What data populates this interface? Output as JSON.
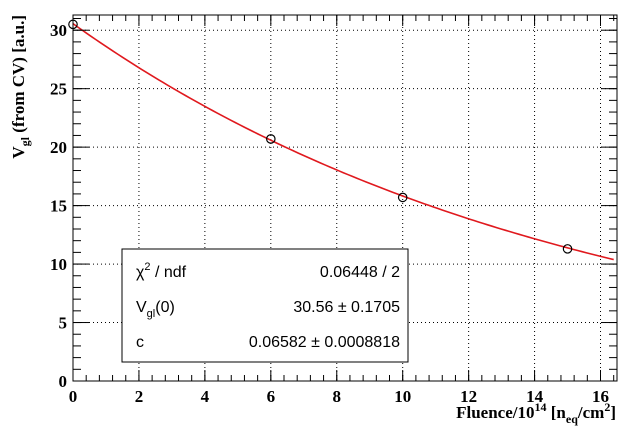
{
  "chart_data": {
    "type": "scatter",
    "xlabel": {
      "main": "Fluence/10",
      "exp": "14",
      "open": " [n",
      "sub": "eq",
      "unit": "/cm",
      "unit_exp": "2",
      "close": "]"
    },
    "ylabel": {
      "main": "V",
      "sub": "gl",
      "rest": " (from CV) [a.u.]"
    },
    "xlim": [
      0,
      16.5
    ],
    "ylim": [
      0,
      31.3
    ],
    "xticks": [
      0,
      2,
      4,
      6,
      8,
      10,
      12,
      14,
      16
    ],
    "yticks": [
      0,
      5,
      10,
      15,
      20,
      25,
      30
    ],
    "grid": true,
    "series": [
      {
        "kind": "points",
        "marker": "open-circle",
        "color": "#000000",
        "points": [
          {
            "x": 0,
            "y": 30.5
          },
          {
            "x": 6,
            "y": 20.7
          },
          {
            "x": 10,
            "y": 15.7
          },
          {
            "x": 15,
            "y": 11.3
          }
        ]
      },
      {
        "kind": "fit-line",
        "color": "#e0191e",
        "function": "V0*exp(-c*x)",
        "params": {
          "V0": 30.56,
          "c": 0.06582
        },
        "x_range": [
          0,
          16.4
        ]
      }
    ],
    "stats": {
      "rows": [
        {
          "label": "χ",
          "label_sup": "2",
          "label_rest": " / ndf",
          "value": "0.06448 / 2"
        },
        {
          "label": "V",
          "label_sub": "gl",
          "label_rest": "(0)",
          "value": "30.56 ± 0.1705"
        },
        {
          "label": "c",
          "value": "0.06582 ± 0.0008818"
        }
      ]
    }
  }
}
